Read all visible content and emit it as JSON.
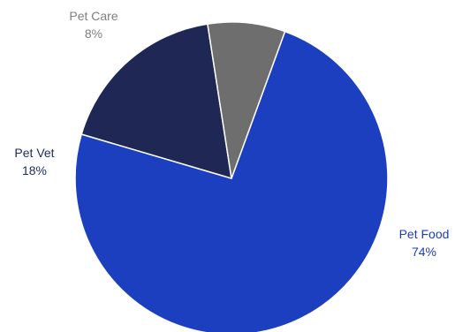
{
  "chart_data": {
    "type": "pie",
    "title": "",
    "slices": [
      {
        "label": "Pet Food",
        "percent_text": "74%",
        "value": 74,
        "color": "#1b3fbf",
        "label_color": "#1a3dbb"
      },
      {
        "label": "Pet Vet",
        "percent_text": "18%",
        "value": 18,
        "color": "#1f2755",
        "label_color": "#1f2a5a"
      },
      {
        "label": "Pet Care",
        "percent_text": "8%",
        "value": 8,
        "color": "#6e6e6e",
        "label_color": "#7f7f7f"
      }
    ],
    "legend": "none",
    "slice_border_color": "#ffffff"
  }
}
